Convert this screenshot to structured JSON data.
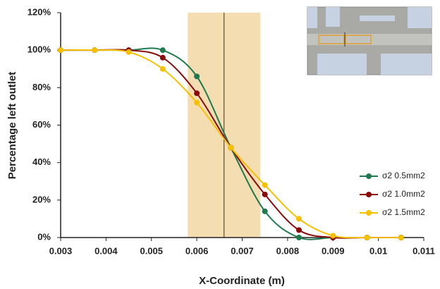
{
  "chart_data": {
    "type": "line",
    "x_label": "X-Coordinate (m)",
    "y_label": "Percentage left outlet",
    "x": [
      0.003,
      0.00375,
      0.0045,
      0.00525,
      0.006,
      0.00675,
      0.0075,
      0.00825,
      0.009,
      0.00975,
      0.0105
    ],
    "series": [
      {
        "name": "σ2 0.5mm2",
        "color": "#1e7a4e",
        "values": [
          100,
          100,
          100,
          100,
          86,
          48,
          14,
          0,
          0,
          0,
          0
        ]
      },
      {
        "name": "σ2 1.0mm2",
        "color": "#8b0a0a",
        "values": [
          100,
          100,
          100,
          96,
          77,
          48,
          23,
          4,
          0,
          0,
          0
        ]
      },
      {
        "name": "σ2 1.5mm2",
        "color": "#f5c000",
        "values": [
          100,
          100,
          99,
          90,
          72,
          48,
          28,
          10,
          1,
          0,
          0
        ]
      }
    ],
    "xlim": [
      0.003,
      0.011
    ],
    "xticks": [
      0.003,
      0.004,
      0.005,
      0.006,
      0.007,
      0.008,
      0.009,
      0.01,
      0.011
    ],
    "ylim": [
      0,
      120
    ],
    "yticks": [
      {
        "value": 0,
        "label": "0%"
      },
      {
        "value": 20,
        "label": "20%"
      },
      {
        "value": 40,
        "label": "40%"
      },
      {
        "value": 60,
        "label": "60%"
      },
      {
        "value": 80,
        "label": "80%"
      },
      {
        "value": 100,
        "label": "100%"
      },
      {
        "value": 120,
        "label": "120%"
      }
    ],
    "shaded_region": [
      0.0058,
      0.0074
    ],
    "shaded_color": "#f3ddb1",
    "vline": 0.0066,
    "grid": false,
    "legend": "right"
  }
}
